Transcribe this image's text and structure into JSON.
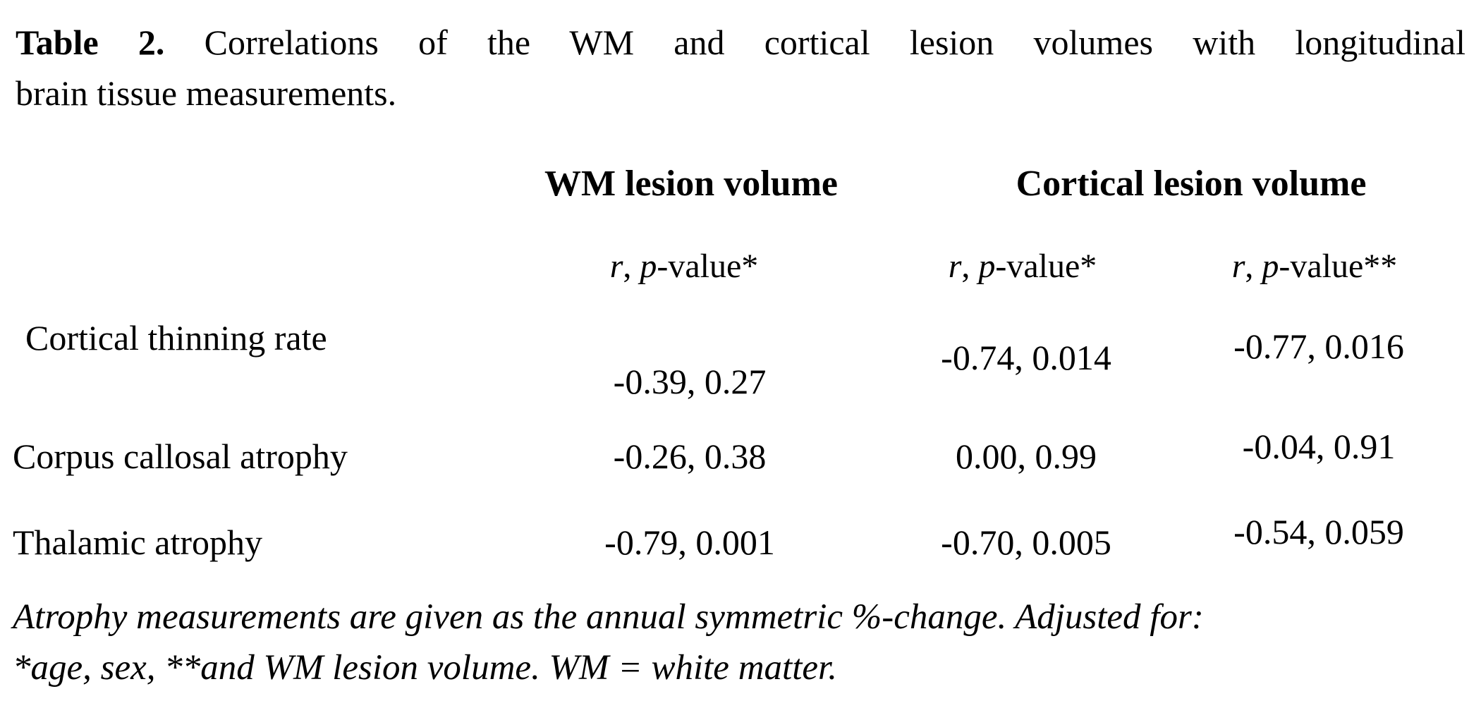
{
  "caption": {
    "label": "Table 2.",
    "line1": "Correlations of the WM and cortical lesion volumes with longitudinal",
    "line2": "brain tissue measurements."
  },
  "columns": {
    "wm": "WM lesion volume",
    "cortical": "Cortical lesion volume"
  },
  "subheaders": [
    {
      "r": "r",
      "sep": ", ",
      "p": "p",
      "suffix": "-value*"
    },
    {
      "r": "r",
      "sep": ", ",
      "p": "p",
      "suffix": "-value*"
    },
    {
      "r": "r",
      "sep": ", ",
      "p": "p",
      "suffix": "-value**"
    }
  ],
  "rows": [
    {
      "label": "Cortical thinning rate",
      "wm": "-0.39, 0.27",
      "cortical_adj1": "-0.74, 0.014",
      "cortical_adj2": "-0.77, 0.016"
    },
    {
      "label": "Corpus callosal atrophy",
      "wm": "-0.26, 0.38",
      "cortical_adj1": "0.00, 0.99",
      "cortical_adj2": "-0.04, 0.91"
    },
    {
      "label": "Thalamic atrophy",
      "wm": "-0.79, 0.001",
      "cortical_adj1": "-0.70, 0.005",
      "cortical_adj2": "-0.54, 0.059"
    }
  ],
  "footnote": {
    "line1": "Atrophy measurements are given as the annual symmetric %-change. Adjusted for:",
    "line2": "*age, sex, **and WM lesion volume. WM = white matter."
  },
  "colors": {
    "background": "#ffffff",
    "text": "#000000"
  }
}
